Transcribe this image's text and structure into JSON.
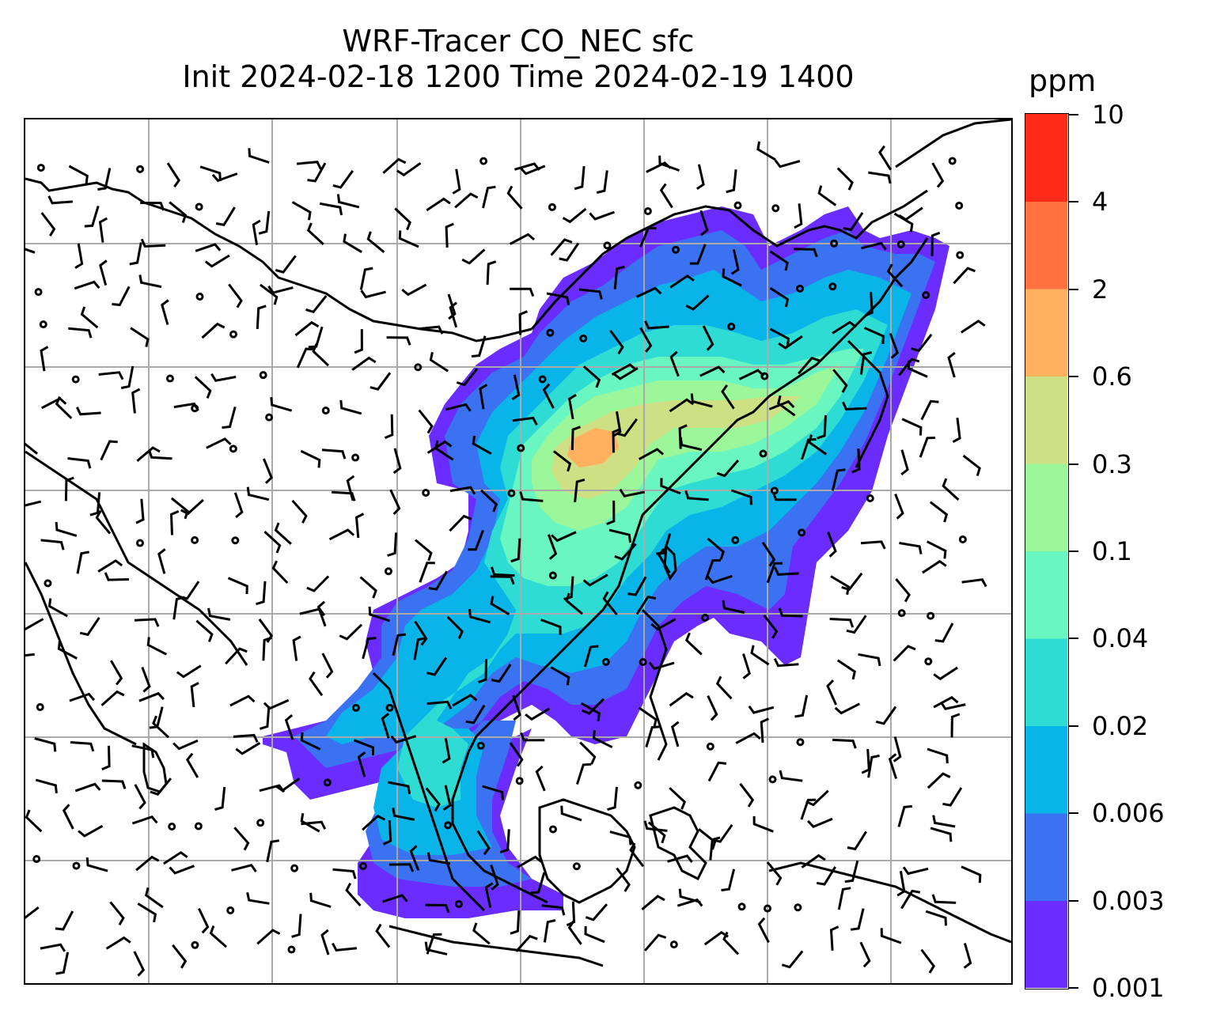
{
  "title": {
    "line1": "WRF-Tracer CO_NEC sfc",
    "line2": "Init 2024-02-18 1200 Time 2024-02-19 1400"
  },
  "colorbar": {
    "unit": "ppm",
    "levels": [
      "0.001",
      "0.003",
      "0.006",
      "0.02",
      "0.04",
      "0.1",
      "0.3",
      "0.6",
      "2",
      "4",
      "10"
    ],
    "colors": [
      "#6a2cff",
      "#3a72f2",
      "#08b4e8",
      "#2edcd4",
      "#6af6c0",
      "#9cf79a",
      "#cfe084",
      "#ffb160",
      "#ff7240",
      "#ff2b18"
    ]
  },
  "map": {
    "coastline_color": "#000000",
    "gridline_color": "#aaaaaa",
    "wind_barb_color": "#000000"
  }
}
